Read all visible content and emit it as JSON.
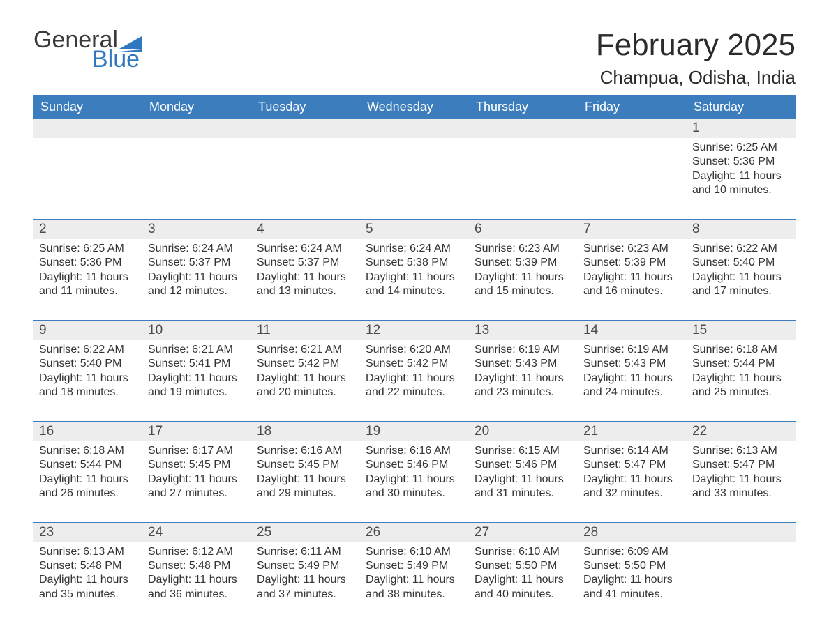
{
  "logo": {
    "text_general": "General",
    "text_blue": "Blue",
    "flag_color": "#2f78bf"
  },
  "title": "February 2025",
  "location": "Champua, Odisha, India",
  "colors": {
    "header_bg": "#3c7ebd",
    "header_text": "#ffffff",
    "daynum_bg": "#ededed",
    "week_border": "#3c7ebd",
    "body_text": "#333333",
    "logo_dark": "#3a3a3a",
    "logo_blue": "#2f78bf",
    "background": "#ffffff"
  },
  "fonts": {
    "title_size_pt": 33,
    "location_size_pt": 20,
    "dow_size_pt": 14,
    "daynum_size_pt": 14,
    "body_size_pt": 12
  },
  "days_of_week": [
    "Sunday",
    "Monday",
    "Tuesday",
    "Wednesday",
    "Thursday",
    "Friday",
    "Saturday"
  ],
  "weeks": [
    {
      "days": [
        {
          "num": "",
          "lines": []
        },
        {
          "num": "",
          "lines": []
        },
        {
          "num": "",
          "lines": []
        },
        {
          "num": "",
          "lines": []
        },
        {
          "num": "",
          "lines": []
        },
        {
          "num": "",
          "lines": []
        },
        {
          "num": "1",
          "lines": [
            "Sunrise: 6:25 AM",
            "Sunset: 5:36 PM",
            "Daylight: 11 hours and 10 minutes."
          ]
        }
      ]
    },
    {
      "days": [
        {
          "num": "2",
          "lines": [
            "Sunrise: 6:25 AM",
            "Sunset: 5:36 PM",
            "Daylight: 11 hours and 11 minutes."
          ]
        },
        {
          "num": "3",
          "lines": [
            "Sunrise: 6:24 AM",
            "Sunset: 5:37 PM",
            "Daylight: 11 hours and 12 minutes."
          ]
        },
        {
          "num": "4",
          "lines": [
            "Sunrise: 6:24 AM",
            "Sunset: 5:37 PM",
            "Daylight: 11 hours and 13 minutes."
          ]
        },
        {
          "num": "5",
          "lines": [
            "Sunrise: 6:24 AM",
            "Sunset: 5:38 PM",
            "Daylight: 11 hours and 14 minutes."
          ]
        },
        {
          "num": "6",
          "lines": [
            "Sunrise: 6:23 AM",
            "Sunset: 5:39 PM",
            "Daylight: 11 hours and 15 minutes."
          ]
        },
        {
          "num": "7",
          "lines": [
            "Sunrise: 6:23 AM",
            "Sunset: 5:39 PM",
            "Daylight: 11 hours and 16 minutes."
          ]
        },
        {
          "num": "8",
          "lines": [
            "Sunrise: 6:22 AM",
            "Sunset: 5:40 PM",
            "Daylight: 11 hours and 17 minutes."
          ]
        }
      ]
    },
    {
      "days": [
        {
          "num": "9",
          "lines": [
            "Sunrise: 6:22 AM",
            "Sunset: 5:40 PM",
            "Daylight: 11 hours and 18 minutes."
          ]
        },
        {
          "num": "10",
          "lines": [
            "Sunrise: 6:21 AM",
            "Sunset: 5:41 PM",
            "Daylight: 11 hours and 19 minutes."
          ]
        },
        {
          "num": "11",
          "lines": [
            "Sunrise: 6:21 AM",
            "Sunset: 5:42 PM",
            "Daylight: 11 hours and 20 minutes."
          ]
        },
        {
          "num": "12",
          "lines": [
            "Sunrise: 6:20 AM",
            "Sunset: 5:42 PM",
            "Daylight: 11 hours and 22 minutes."
          ]
        },
        {
          "num": "13",
          "lines": [
            "Sunrise: 6:19 AM",
            "Sunset: 5:43 PM",
            "Daylight: 11 hours and 23 minutes."
          ]
        },
        {
          "num": "14",
          "lines": [
            "Sunrise: 6:19 AM",
            "Sunset: 5:43 PM",
            "Daylight: 11 hours and 24 minutes."
          ]
        },
        {
          "num": "15",
          "lines": [
            "Sunrise: 6:18 AM",
            "Sunset: 5:44 PM",
            "Daylight: 11 hours and 25 minutes."
          ]
        }
      ]
    },
    {
      "days": [
        {
          "num": "16",
          "lines": [
            "Sunrise: 6:18 AM",
            "Sunset: 5:44 PM",
            "Daylight: 11 hours and 26 minutes."
          ]
        },
        {
          "num": "17",
          "lines": [
            "Sunrise: 6:17 AM",
            "Sunset: 5:45 PM",
            "Daylight: 11 hours and 27 minutes."
          ]
        },
        {
          "num": "18",
          "lines": [
            "Sunrise: 6:16 AM",
            "Sunset: 5:45 PM",
            "Daylight: 11 hours and 29 minutes."
          ]
        },
        {
          "num": "19",
          "lines": [
            "Sunrise: 6:16 AM",
            "Sunset: 5:46 PM",
            "Daylight: 11 hours and 30 minutes."
          ]
        },
        {
          "num": "20",
          "lines": [
            "Sunrise: 6:15 AM",
            "Sunset: 5:46 PM",
            "Daylight: 11 hours and 31 minutes."
          ]
        },
        {
          "num": "21",
          "lines": [
            "Sunrise: 6:14 AM",
            "Sunset: 5:47 PM",
            "Daylight: 11 hours and 32 minutes."
          ]
        },
        {
          "num": "22",
          "lines": [
            "Sunrise: 6:13 AM",
            "Sunset: 5:47 PM",
            "Daylight: 11 hours and 33 minutes."
          ]
        }
      ]
    },
    {
      "days": [
        {
          "num": "23",
          "lines": [
            "Sunrise: 6:13 AM",
            "Sunset: 5:48 PM",
            "Daylight: 11 hours and 35 minutes."
          ]
        },
        {
          "num": "24",
          "lines": [
            "Sunrise: 6:12 AM",
            "Sunset: 5:48 PM",
            "Daylight: 11 hours and 36 minutes."
          ]
        },
        {
          "num": "25",
          "lines": [
            "Sunrise: 6:11 AM",
            "Sunset: 5:49 PM",
            "Daylight: 11 hours and 37 minutes."
          ]
        },
        {
          "num": "26",
          "lines": [
            "Sunrise: 6:10 AM",
            "Sunset: 5:49 PM",
            "Daylight: 11 hours and 38 minutes."
          ]
        },
        {
          "num": "27",
          "lines": [
            "Sunrise: 6:10 AM",
            "Sunset: 5:50 PM",
            "Daylight: 11 hours and 40 minutes."
          ]
        },
        {
          "num": "28",
          "lines": [
            "Sunrise: 6:09 AM",
            "Sunset: 5:50 PM",
            "Daylight: 11 hours and 41 minutes."
          ]
        },
        {
          "num": "",
          "lines": []
        }
      ]
    }
  ]
}
